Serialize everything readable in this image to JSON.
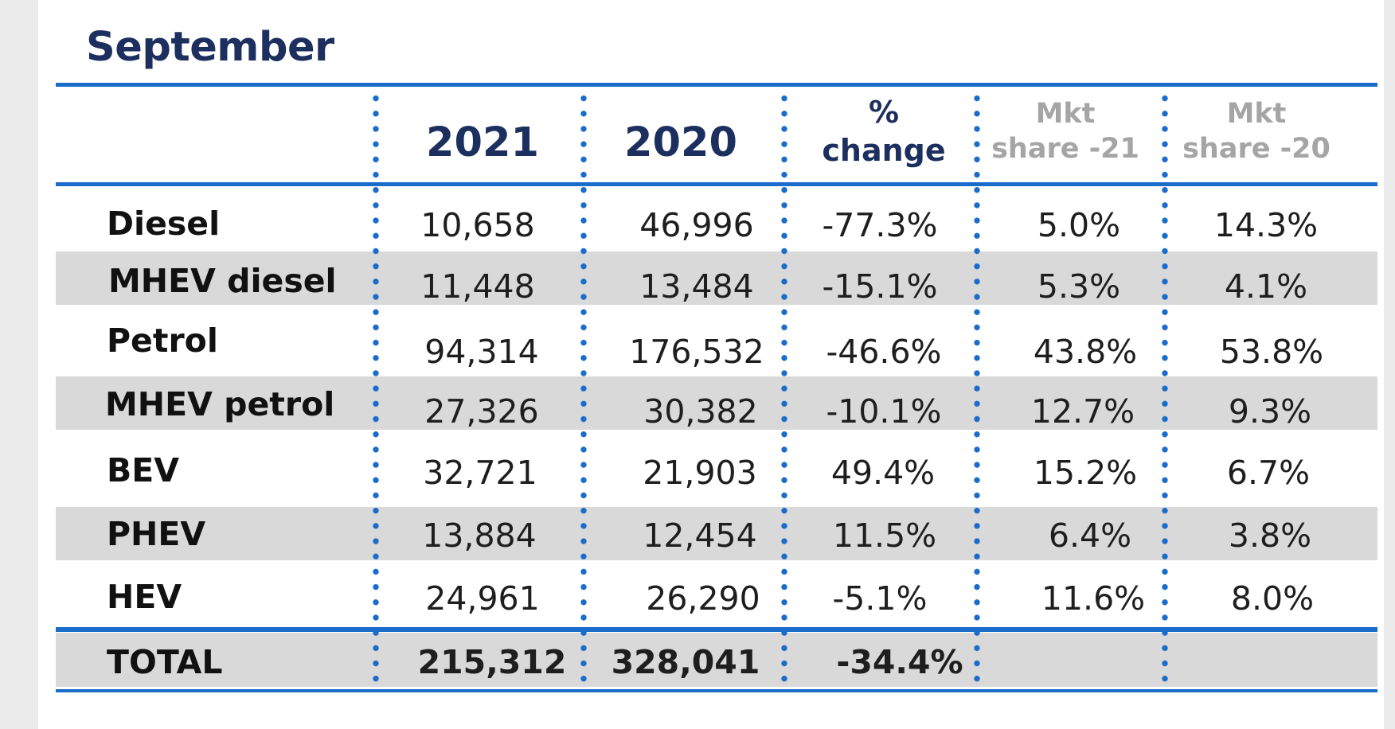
{
  "title": "September",
  "columns": {
    "y2021": "2021",
    "y2020": "2020",
    "pct_change": [
      "%",
      "change"
    ],
    "mkt_share_21": [
      "Mkt",
      "share -21"
    ],
    "mkt_share_20": [
      "Mkt",
      "share -20"
    ]
  },
  "chart_data": {
    "type": "table",
    "title": "September",
    "columns": [
      "",
      "2021",
      "2020",
      "% change",
      "Mkt share -21",
      "Mkt share -20"
    ],
    "rows": [
      {
        "label": "Diesel",
        "y2021": "10,658",
        "y2020": "46,996",
        "pct": "-77.3%",
        "mkt21": "5.0%",
        "mkt20": "14.3%"
      },
      {
        "label": "MHEV diesel",
        "y2021": "11,448",
        "y2020": "13,484",
        "pct": "-15.1%",
        "mkt21": "5.3%",
        "mkt20": "4.1%"
      },
      {
        "label": "Petrol",
        "y2021": "94,314",
        "y2020": "176,532",
        "pct": "-46.6%",
        "mkt21": "43.8%",
        "mkt20": "53.8%"
      },
      {
        "label": "MHEV petrol",
        "y2021": "27,326",
        "y2020": "30,382",
        "pct": "-10.1%",
        "mkt21": "12.7%",
        "mkt20": "9.3%"
      },
      {
        "label": "BEV",
        "y2021": "32,721",
        "y2020": "21,903",
        "pct": "49.4%",
        "mkt21": "15.2%",
        "mkt20": "6.7%"
      },
      {
        "label": "PHEV",
        "y2021": "13,884",
        "y2020": "12,454",
        "pct": "11.5%",
        "mkt21": "6.4%",
        "mkt20": "3.8%"
      },
      {
        "label": "HEV",
        "y2021": "24,961",
        "y2020": "26,290",
        "pct": "-5.1%",
        "mkt21": "11.6%",
        "mkt20": "8.0%"
      }
    ],
    "total": {
      "label": "TOTAL",
      "y2021": "215,312",
      "y2020": "328,041",
      "pct": "-34.4%",
      "mkt21": "",
      "mkt20": ""
    }
  }
}
